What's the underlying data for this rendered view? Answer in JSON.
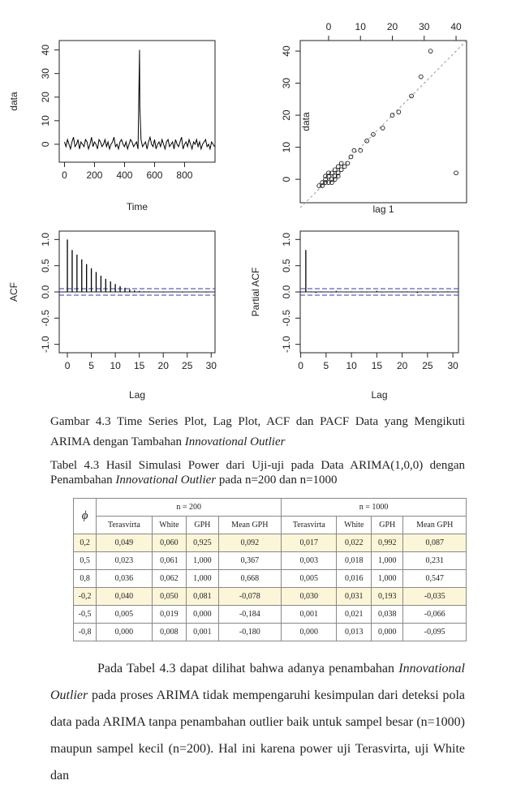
{
  "chart_data": [
    {
      "type": "line",
      "y_label": "data",
      "x_label": "Time",
      "color": "#000000",
      "x": [
        0,
        10,
        20,
        30,
        40,
        50,
        60,
        70,
        80,
        90,
        100,
        110,
        120,
        130,
        140,
        150,
        160,
        170,
        180,
        190,
        200,
        210,
        220,
        230,
        240,
        250,
        260,
        270,
        280,
        290,
        300,
        310,
        320,
        330,
        340,
        350,
        360,
        370,
        380,
        390,
        400,
        410,
        420,
        430,
        440,
        450,
        460,
        470,
        480,
        490,
        500,
        502,
        510,
        520,
        530,
        540,
        550,
        560,
        570,
        580,
        590,
        600,
        610,
        620,
        630,
        640,
        650,
        660,
        670,
        680,
        690,
        700,
        710,
        720,
        730,
        740,
        750,
        760,
        770,
        780,
        790,
        800,
        810,
        820,
        830,
        840,
        850,
        860,
        870,
        880,
        890,
        900,
        910,
        920,
        930,
        940,
        950,
        960,
        970,
        980,
        990,
        1000
      ],
      "values": [
        1,
        -1,
        2,
        0,
        -2,
        1,
        3,
        -1,
        0,
        2,
        -2,
        1,
        0,
        -1,
        2,
        1,
        -2,
        0,
        3,
        -1,
        1,
        0,
        -2,
        2,
        1,
        -1,
        0,
        2,
        -1,
        1,
        -2,
        0,
        1,
        3,
        -1,
        0,
        -2,
        1,
        2,
        0,
        -1,
        1,
        -2,
        0,
        2,
        1,
        -1,
        0,
        1,
        -2,
        40,
        16,
        2,
        -1,
        0,
        1,
        -2,
        1,
        3,
        0,
        -1,
        2,
        -2,
        0,
        1,
        -1,
        2,
        0,
        -2,
        1,
        2,
        -1,
        0,
        1,
        -2,
        2,
        0,
        -1,
        1,
        3,
        -2,
        0,
        1,
        -1,
        2,
        0,
        -2,
        1,
        0,
        2,
        -1,
        1,
        -2,
        0,
        1,
        2,
        -1,
        0,
        -2,
        1,
        0,
        -1
      ],
      "xlim": [
        -35,
        1003
      ],
      "ylim": [
        -7.6,
        44
      ],
      "xticks": [
        0,
        200,
        400,
        600,
        800
      ],
      "yticks": [
        0,
        10,
        20,
        30,
        40
      ]
    },
    {
      "type": "scatter",
      "y_label": "data",
      "x_label": "lag 1",
      "color": "#000000",
      "x_axis_position": "top",
      "x": [
        0,
        1,
        -1,
        2,
        1,
        -2,
        3,
        2,
        0,
        -1,
        4,
        3,
        -2,
        1,
        -1,
        5,
        4,
        2,
        0,
        -3,
        6,
        3,
        7,
        8,
        10,
        12,
        14,
        17,
        20,
        22,
        26,
        29,
        32,
        40
      ],
      "values": [
        1,
        0,
        -1,
        1,
        2,
        -2,
        2,
        3,
        -1,
        0,
        3,
        4,
        -1,
        -1,
        1,
        4,
        5,
        0,
        2,
        -2,
        5,
        1,
        7,
        9,
        9,
        12,
        14,
        16,
        20,
        21,
        26,
        32,
        40,
        2
      ],
      "xlim": [
        -8.9,
        43.3
      ],
      "ylim": [
        -7.3,
        43.3
      ],
      "xticks": [
        0,
        10,
        20,
        30,
        40
      ],
      "yticks": [
        0,
        10,
        20,
        30,
        40
      ]
    },
    {
      "type": "stem",
      "y_label": "ACF",
      "x_label": "Lag",
      "color": "#000000",
      "ci_color": "#3333cc",
      "ci": [
        0.062,
        -0.062
      ],
      "x": [
        0,
        1,
        2,
        3,
        4,
        5,
        6,
        7,
        8,
        9,
        10,
        11,
        12,
        13,
        14,
        15,
        16,
        17,
        18,
        19,
        20,
        21,
        22,
        23,
        24,
        25,
        26,
        27,
        28,
        29,
        30
      ],
      "values": [
        1.0,
        0.8,
        0.71,
        0.62,
        0.53,
        0.45,
        0.38,
        0.31,
        0.25,
        0.2,
        0.15,
        0.11,
        0.08,
        0.05,
        0.03,
        0.02,
        0.01,
        0.01,
        0.0,
        0.0,
        -0.01,
        0.0,
        0.01,
        0.0,
        -0.01,
        0.0,
        0.0,
        0.01,
        0.0,
        -0.01,
        0.0
      ],
      "xlim": [
        -1.7,
        30.8
      ],
      "ylim": [
        -1.16,
        1.16
      ],
      "xticks": [
        0,
        5,
        10,
        15,
        20,
        25,
        30
      ],
      "yticks": [
        {
          "value": -1,
          "label": "-1.0"
        },
        {
          "value": -0.5,
          "label": "-0.5"
        },
        {
          "value": 0,
          "label": "0.0"
        },
        {
          "value": 0.5,
          "label": "0.5"
        },
        {
          "value": 1,
          "label": "1.0"
        }
      ]
    },
    {
      "type": "stem",
      "y_label": "Partial ACF",
      "x_label": "Lag",
      "color": "#000000",
      "ci_color": "#3333cc",
      "ci": [
        0.062,
        -0.062
      ],
      "x": [
        1,
        2,
        3,
        4,
        5,
        6,
        7,
        8,
        9,
        10,
        11,
        12,
        13,
        14,
        15,
        16,
        17,
        18,
        19,
        20,
        21,
        22,
        23,
        24,
        25,
        26,
        27,
        28,
        29,
        30
      ],
      "values": [
        0.8,
        0.01,
        -0.02,
        0.01,
        0.0,
        -0.01,
        0.02,
        0.0,
        -0.01,
        0.01,
        0.0,
        0.01,
        -0.01,
        0.0,
        0.02,
        -0.01,
        0.0,
        0.01,
        0.0,
        -0.01,
        0.01,
        0.0,
        -0.02,
        0.01,
        0.0,
        0.01,
        -0.01,
        0.0,
        0.01,
        0.0
      ],
      "xlim": [
        -0.1,
        31.1
      ],
      "ylim": [
        -1.16,
        1.16
      ],
      "xticks": [
        0,
        5,
        10,
        15,
        20,
        25,
        30
      ],
      "yticks": [
        {
          "value": -1,
          "label": "-1.0"
        },
        {
          "value": -0.5,
          "label": "-0.5"
        },
        {
          "value": 0,
          "label": "0.0"
        },
        {
          "value": 0.5,
          "label": "0.5"
        },
        {
          "value": 1,
          "label": "1.0"
        }
      ]
    }
  ],
  "caption": [
    {
      "text": "Gambar 4.3 Time Series Plot, Lag Plot, ACF dan PACF Data yang Mengikuti ARIMA dengan Tambahan "
    },
    {
      "text": "Innovational Outlier",
      "italic": true
    }
  ],
  "table_caption": [
    {
      "text": "Tabel 4.3 Hasil Simulasi Power dari Uji-uji pada Data ARIMA(1,0,0) dengan Penambahan "
    },
    {
      "text": "Innovational Outlier",
      "italic": true
    },
    {
      "text": " pada n=200 dan n=1000"
    }
  ],
  "table": {
    "corner": "ϕ",
    "groups": [
      "n = 200",
      "n = 1000"
    ],
    "columns": [
      "Terasvirta",
      "White",
      "GPH",
      "Mean GPH",
      "Terasvirta",
      "White",
      "GPH",
      "Mean GPH"
    ],
    "rows": [
      [
        "0,2",
        "0,049",
        "0,060",
        "0,925",
        "0,092",
        "0,017",
        "0,022",
        "0,992",
        "0,087"
      ],
      [
        "0,5",
        "0,023",
        "0,061",
        "1,000",
        "0,367",
        "0,003",
        "0,018",
        "1,000",
        "0,231"
      ],
      [
        "0,8",
        "0,036",
        "0,062",
        "1,000",
        "0,668",
        "0,005",
        "0,016",
        "1,000",
        "0,547"
      ],
      [
        "-0,2",
        "0,040",
        "0,050",
        "0,081",
        "-0,078",
        "0,030",
        "0,031",
        "0,193",
        "-0,035"
      ],
      [
        "-0,5",
        "0,005",
        "0,019",
        "0,000",
        "-0,184",
        "0,001",
        "0,021",
        "0,038",
        "-0,066"
      ],
      [
        "-0,8",
        "0,000",
        "0,008",
        "0,001",
        "-0,180",
        "0,000",
        "0,013",
        "0,000",
        "-0,095"
      ]
    ]
  },
  "paragraph": [
    {
      "text": "Pada Tabel 4.3 dapat dilihat bahwa adanya penambahan "
    },
    {
      "text": "Innovational Outlier",
      "italic": true
    },
    {
      "text": " pada proses ARIMA tidak mempengaruhi kesimpulan dari deteksi pola data pada ARIMA tanpa penambahan outlier baik untuk sampel besar (n=1000) maupun sampel kecil (n=200). Hal ini karena power uji Terasvirta, uji White dan"
    }
  ]
}
